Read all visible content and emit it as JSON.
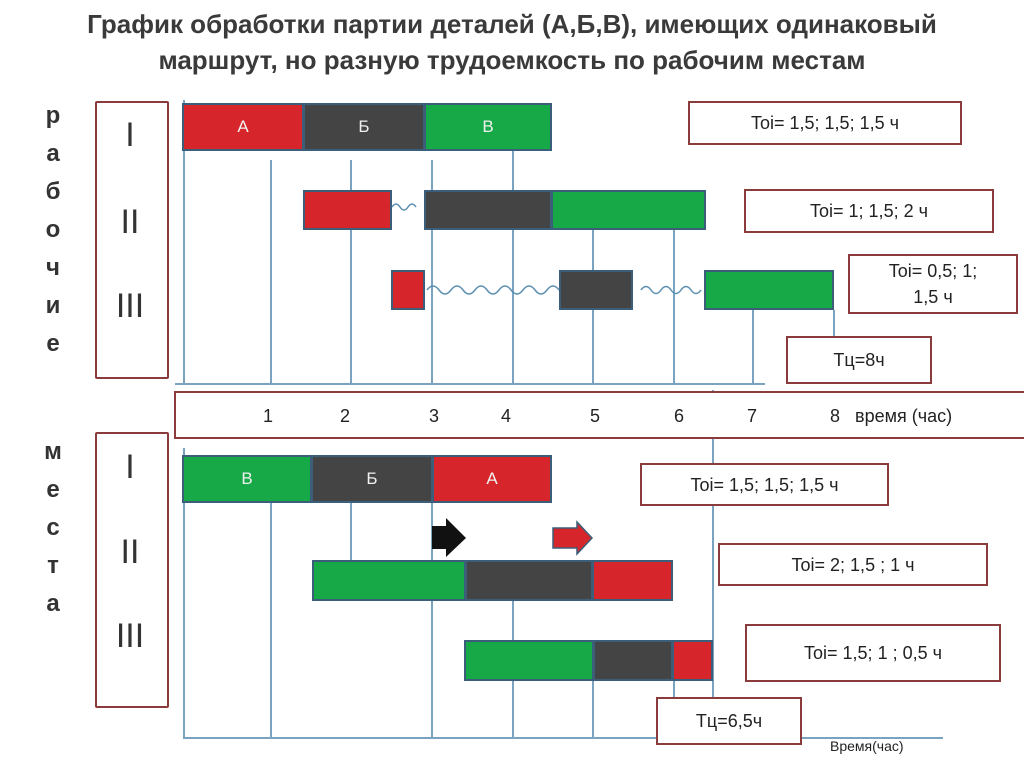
{
  "title_line1": "График обработки партии деталей (А,Б,В), имеющих одинаковый",
  "title_line2": "маршрут, но разную трудоемкость по рабочим местам",
  "side_word_top": [
    "р",
    "а",
    "б",
    "о",
    "ч",
    "и",
    "е"
  ],
  "side_word_bottom": [
    "м",
    "е",
    "с",
    "т",
    "а"
  ],
  "romans": [
    "I",
    "II",
    "III"
  ],
  "top": {
    "row1_labels": [
      "А",
      "Б",
      "В"
    ],
    "info": [
      "Toi=  1,5;   1,5;  1,5 ч",
      "Toi= 1;      1,5;   2  ч",
      "Toi= 0,5;   1;",
      "1,5  ч"
    ],
    "tc": "Тц=8ч"
  },
  "axis": {
    "ticks": [
      "1",
      "2",
      "3",
      "4",
      "5",
      "6",
      "7",
      "8"
    ],
    "label": "время (час)"
  },
  "bottom": {
    "row1_labels": [
      "В",
      "Б",
      "А"
    ],
    "info": [
      "Toi= 1,5;   1,5;  1,5 ч",
      "Toi= 2;     1,5 ;   1   ч",
      "Toi= 1,5;    1 ;    0,5 ч"
    ],
    "tc": "Тц=6,5ч",
    "axis_label": "Время(час)"
  },
  "colors": {
    "red": "#d7262b",
    "dark": "#444444",
    "green": "#17a948",
    "frame": "#8a3b3b",
    "grid": "#7aa3c2"
  }
}
